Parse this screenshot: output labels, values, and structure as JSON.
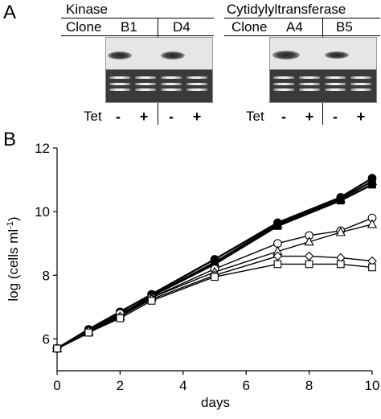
{
  "panel_a": {
    "letter": "A",
    "left_group": {
      "title": "Kinase",
      "clone_label": "Clone",
      "clones": [
        "B1",
        "D4"
      ],
      "tet_label": "Tet",
      "tet_values": [
        "-",
        "+",
        "-",
        "+"
      ]
    },
    "right_group": {
      "title": "Cytidylyltransferase",
      "clone_label": "Clone",
      "clones": [
        "A4",
        "B5"
      ],
      "tet_label": "Tet",
      "tet_values": [
        "-",
        "+",
        "-",
        "+"
      ]
    }
  },
  "panel_b": {
    "letter": "B"
  },
  "chart_data": {
    "type": "line",
    "xlabel": "days",
    "ylabel": "log (cells ml-1)",
    "ylabel_parts": {
      "main": "log (cells ml",
      "superscript": "-1",
      "close": ")"
    },
    "xlim": [
      0,
      10
    ],
    "ylim": [
      5,
      12
    ],
    "x_ticks": [
      0,
      2,
      4,
      6,
      8,
      10
    ],
    "y_ticks": [
      6,
      8,
      10,
      12
    ],
    "grid": false,
    "series": [
      {
        "marker": "filled-circle",
        "x": [
          0,
          1,
          2,
          3,
          5,
          7,
          9,
          10
        ],
        "y": [
          5.7,
          6.3,
          6.85,
          7.4,
          8.5,
          9.65,
          10.45,
          11.05
        ]
      },
      {
        "marker": "filled-square",
        "x": [
          0,
          1,
          2,
          3,
          5,
          7,
          9,
          10
        ],
        "y": [
          5.7,
          6.2,
          6.75,
          7.35,
          8.35,
          9.55,
          10.35,
          10.85
        ]
      },
      {
        "marker": "filled-triangle",
        "x": [
          0,
          1,
          2,
          3,
          5,
          7,
          9,
          10
        ],
        "y": [
          5.7,
          6.25,
          6.7,
          7.35,
          8.4,
          9.6,
          10.4,
          10.95
        ]
      },
      {
        "marker": "open-circle",
        "x": [
          0,
          1,
          2,
          3,
          5,
          7,
          8,
          9,
          10
        ],
        "y": [
          5.7,
          6.25,
          6.8,
          7.3,
          8.2,
          9.0,
          9.25,
          9.4,
          9.8
        ]
      },
      {
        "marker": "open-triangle",
        "x": [
          0,
          1,
          2,
          3,
          5,
          7,
          8,
          9,
          10
        ],
        "y": [
          5.7,
          6.2,
          6.7,
          7.3,
          8.1,
          8.75,
          9.05,
          9.35,
          9.6
        ]
      },
      {
        "marker": "open-diamond",
        "x": [
          0,
          1,
          2,
          3,
          5,
          7,
          8,
          9,
          10
        ],
        "y": [
          5.7,
          6.25,
          6.7,
          7.25,
          8.0,
          8.6,
          8.6,
          8.55,
          8.45
        ]
      },
      {
        "marker": "open-square",
        "x": [
          0,
          1,
          2,
          3,
          5,
          7,
          8,
          9,
          10
        ],
        "y": [
          5.7,
          6.2,
          6.65,
          7.2,
          7.95,
          8.35,
          8.35,
          8.35,
          8.25
        ]
      }
    ]
  }
}
